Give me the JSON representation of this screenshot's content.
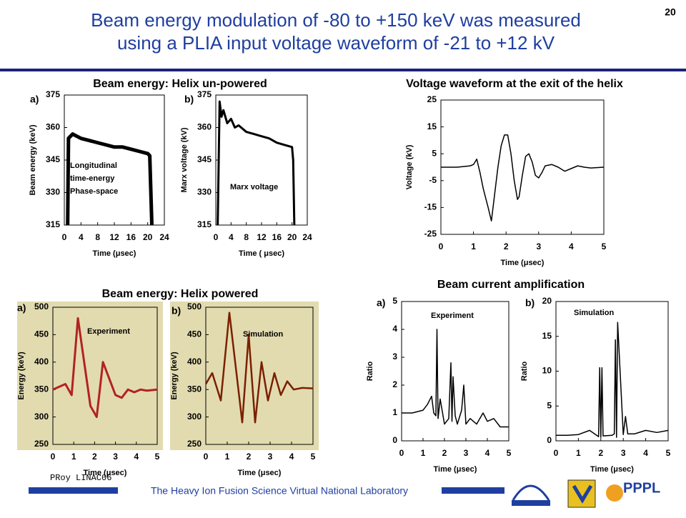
{
  "slide": {
    "title": [
      "Beam energy modulation of -80 to +150 keV was measured",
      "using a PLIA input voltage waveform of -21 to +12 kV"
    ],
    "page_number": "20",
    "headings": [
      "Beam energy: Helix un-powered",
      "Voltage waveform  at the exit of the helix",
      "Beam energy: Helix powered",
      "Beam current amplification"
    ],
    "author": "PRoy LINAC06",
    "footer": "The Heavy Ion Fusion Science Virtual National Laboratory",
    "logo": "PPPL"
  },
  "chart_data": [
    {
      "type": "line",
      "panel": "a)",
      "ylabel": "Beam energy (keV)",
      "xlabel": "Time (μsec)",
      "annotation": [
        "Longitudinal",
        "time-energy",
        "Phase-space"
      ],
      "xlim": [
        0,
        24
      ],
      "ylim": [
        315,
        375
      ],
      "xticks": [
        0,
        4,
        8,
        12,
        16,
        20,
        24
      ],
      "yticks": [
        315,
        330,
        345,
        360,
        375
      ],
      "x": [
        0.8,
        1,
        2,
        4,
        6,
        8,
        10,
        12,
        14,
        16,
        18,
        20,
        20.5,
        21
      ],
      "series": [
        {
          "color": "#000000",
          "values": [
            315,
            355,
            357,
            355,
            354,
            353,
            352,
            351,
            351,
            350,
            349,
            348,
            347,
            315
          ]
        }
      ]
    },
    {
      "type": "line",
      "panel": "b)",
      "ylabel": "Marx voltage (kV)",
      "xlabel": "Time ( μsec)",
      "annotation": [
        "Marx voltage"
      ],
      "xlim": [
        0,
        24
      ],
      "ylim": [
        315,
        375
      ],
      "xticks": [
        0,
        4,
        8,
        12,
        16,
        20,
        24
      ],
      "yticks": [
        315,
        330,
        345,
        360,
        375
      ],
      "x": [
        0.5,
        1,
        1.5,
        2,
        3,
        4,
        5,
        6,
        8,
        10,
        12,
        14,
        16,
        18,
        20,
        20.3,
        20.6
      ],
      "series": [
        {
          "color": "#000000",
          "values": [
            315,
            372,
            365,
            368,
            362,
            364,
            360,
            361,
            358,
            357,
            356,
            355,
            353,
            352,
            351,
            345,
            315
          ]
        }
      ]
    },
    {
      "type": "line",
      "ylabel": "Voltage (kV)",
      "xlabel": "Time (μsec)",
      "xlim": [
        0,
        5
      ],
      "ylim": [
        -25,
        25
      ],
      "xticks": [
        0,
        1,
        2,
        3,
        4,
        5
      ],
      "yticks": [
        -25,
        -15,
        -5,
        5,
        15,
        25
      ],
      "x": [
        0,
        0.5,
        0.9,
        1.0,
        1.1,
        1.2,
        1.3,
        1.45,
        1.55,
        1.65,
        1.75,
        1.85,
        1.95,
        2.05,
        2.15,
        2.25,
        2.35,
        2.4,
        2.5,
        2.6,
        2.7,
        2.8,
        2.9,
        3.0,
        3.1,
        3.2,
        3.4,
        3.6,
        3.8,
        4.0,
        4.2,
        4.4,
        4.6,
        5.0
      ],
      "series": [
        {
          "color": "#000000",
          "values": [
            0,
            0,
            0.5,
            1,
            3,
            -2,
            -8,
            -15,
            -20,
            -10,
            0,
            8,
            12,
            12,
            5,
            -5,
            -12,
            -11,
            -3,
            4,
            5,
            2,
            -3,
            -4,
            -2,
            0.5,
            1,
            0,
            -1.5,
            -0.5,
            0.5,
            0,
            -0.3,
            0
          ]
        }
      ]
    },
    {
      "type": "line",
      "panel": "a)",
      "ylabel": "Energy (keV)",
      "xlabel": "Time (μsec)",
      "annotation": [
        "Experiment"
      ],
      "plot_background": "#e2dbb0",
      "xlim": [
        0,
        5
      ],
      "ylim": [
        250,
        500
      ],
      "xticks": [
        0,
        1,
        2,
        3,
        4,
        5
      ],
      "yticks": [
        250,
        300,
        350,
        400,
        450,
        500
      ],
      "x": [
        0,
        0.3,
        0.6,
        0.9,
        1.2,
        1.5,
        1.8,
        2.1,
        2.4,
        2.7,
        3.0,
        3.3,
        3.6,
        3.9,
        4.2,
        4.5,
        5
      ],
      "series": [
        {
          "color": "#b22222",
          "values": [
            350,
            355,
            360,
            340,
            480,
            400,
            320,
            300,
            400,
            370,
            340,
            335,
            350,
            345,
            350,
            348,
            350
          ]
        }
      ]
    },
    {
      "type": "line",
      "panel": "b)",
      "ylabel": "Energy (keV)",
      "xlabel": "Time (μsec)",
      "annotation": [
        "Simulation"
      ],
      "plot_background": "#e2dbb0",
      "xlim": [
        0,
        5
      ],
      "ylim": [
        250,
        500
      ],
      "xticks": [
        0,
        1,
        2,
        3,
        4,
        5
      ],
      "yticks": [
        250,
        300,
        350,
        400,
        450,
        500
      ],
      "x": [
        0,
        0.3,
        0.7,
        1.1,
        1.4,
        1.7,
        2.0,
        2.3,
        2.6,
        2.9,
        3.2,
        3.5,
        3.8,
        4.1,
        4.5,
        5
      ],
      "series": [
        {
          "color": "#7a2000",
          "values": [
            360,
            380,
            330,
            490,
            390,
            290,
            450,
            290,
            400,
            330,
            380,
            340,
            365,
            350,
            353,
            352
          ]
        }
      ]
    },
    {
      "type": "line",
      "panel": "a)",
      "ylabel": "Ratio",
      "xlabel": "Time (μsec)",
      "annotation": [
        "Experiment"
      ],
      "xlim": [
        0,
        5
      ],
      "ylim": [
        0,
        5
      ],
      "xticks": [
        0,
        1,
        2,
        3,
        4,
        5
      ],
      "yticks": [
        0,
        1,
        2,
        3,
        4,
        5
      ],
      "x": [
        0,
        0.5,
        1,
        1.2,
        1.4,
        1.5,
        1.6,
        1.65,
        1.7,
        1.8,
        2.0,
        2.2,
        2.3,
        2.35,
        2.4,
        2.5,
        2.6,
        2.8,
        2.9,
        3.0,
        3.2,
        3.5,
        3.8,
        4.0,
        4.3,
        4.6,
        5
      ],
      "series": [
        {
          "color": "#000000",
          "values": [
            1,
            1,
            1.1,
            1.3,
            1.6,
            1,
            0.9,
            4,
            0.8,
            1.5,
            0.6,
            0.8,
            2.8,
            0.7,
            2.3,
            0.9,
            0.6,
            1.1,
            2,
            0.6,
            0.8,
            0.6,
            1,
            0.7,
            0.8,
            0.5,
            0.5
          ]
        }
      ]
    },
    {
      "type": "line",
      "panel": "b)",
      "ylabel": "Ratio",
      "xlabel": "Time (μsec)",
      "annotation": [
        "Simulation"
      ],
      "xlim": [
        0,
        5
      ],
      "ylim": [
        0,
        20
      ],
      "xticks": [
        0,
        1,
        2,
        3,
        4,
        5
      ],
      "yticks": [
        0,
        5,
        10,
        15,
        20
      ],
      "x": [
        0,
        0.5,
        1,
        1.5,
        1.9,
        1.95,
        2.0,
        2.05,
        2.1,
        2.5,
        2.6,
        2.65,
        2.7,
        2.75,
        3.0,
        3.1,
        3.2,
        3.5,
        4,
        4.5,
        5
      ],
      "series": [
        {
          "color": "#000000",
          "values": [
            0.8,
            0.8,
            0.9,
            1.5,
            0.6,
            10.5,
            0.5,
            10.5,
            0.7,
            0.8,
            1,
            14.5,
            0.5,
            17,
            0.9,
            3.5,
            1,
            1,
            1.5,
            1.2,
            1.5
          ]
        }
      ]
    }
  ]
}
